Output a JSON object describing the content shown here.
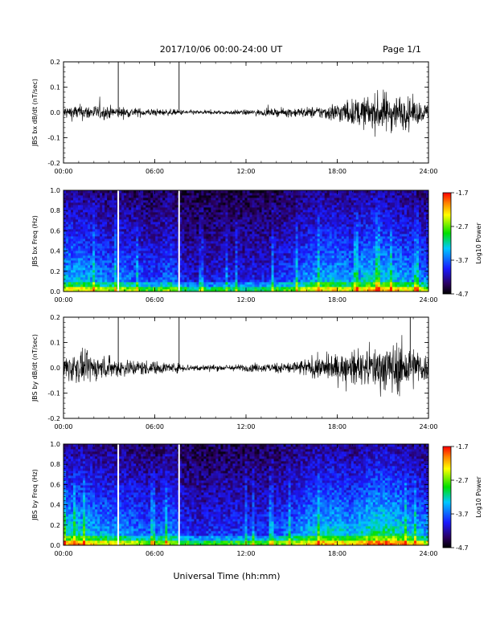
{
  "header": {
    "title": "2017/10/06  00:00-24:00 UT",
    "page": "Page 1/1"
  },
  "footer": {
    "xlabel": "Universal Time (hh:mm)"
  },
  "colorbar": {
    "ticks": [
      "-1.7",
      "-2.7",
      "-3.7",
      "-4.7"
    ],
    "label": "Log10 Power",
    "range": [
      -4.7,
      -1.7
    ]
  },
  "chart_data": [
    {
      "type": "line",
      "ylabel": "JBS bx dB/dt (nT/sec)",
      "xlim": [
        0,
        24
      ],
      "ylim": [
        -0.2,
        0.2
      ],
      "xticks": [
        "00:00",
        "06:00",
        "12:00",
        "18:00",
        "24:00"
      ],
      "yticks": [
        "0.2",
        "0.1",
        "0.0",
        "-0.1",
        "-0.2"
      ],
      "spikes_hours": [
        3.6,
        7.6
      ],
      "envelope": {
        "x": [
          0,
          1,
          2,
          3,
          4,
          5,
          6,
          7,
          8,
          9,
          10,
          11,
          12,
          13,
          14,
          15,
          16,
          17,
          18,
          19,
          20,
          21,
          22,
          23,
          24
        ],
        "amplitude": [
          0.025,
          0.03,
          0.028,
          0.025,
          0.02,
          0.016,
          0.014,
          0.012,
          0.01,
          0.008,
          0.008,
          0.009,
          0.01,
          0.012,
          0.014,
          0.018,
          0.02,
          0.025,
          0.04,
          0.05,
          0.06,
          0.08,
          0.07,
          0.05,
          0.03
        ]
      }
    },
    {
      "type": "heatmap",
      "ylabel": "JBS bx Freq (Hz)",
      "xlim": [
        0,
        24
      ],
      "ylim": [
        0,
        1
      ],
      "xticks": [
        "00:00",
        "06:00",
        "12:00",
        "18:00",
        "24:00"
      ],
      "yticks": [
        "1.0",
        "0.8",
        "0.6",
        "0.4",
        "0.2",
        "0.0"
      ],
      "gaps_hours": [
        3.6,
        7.6
      ],
      "activity": {
        "x": [
          0,
          1,
          2,
          3,
          4,
          5,
          6,
          7,
          8,
          9,
          10,
          11,
          12,
          13,
          14,
          15,
          16,
          17,
          18,
          19,
          20,
          21,
          22,
          23,
          24
        ],
        "level": [
          0.55,
          0.55,
          0.5,
          0.45,
          0.45,
          0.4,
          0.35,
          0.45,
          0.3,
          0.25,
          0.3,
          0.3,
          0.3,
          0.3,
          0.35,
          0.4,
          0.5,
          0.55,
          0.55,
          0.5,
          0.6,
          0.6,
          0.55,
          0.5,
          0.45
        ]
      }
    },
    {
      "type": "line",
      "ylabel": "JBS by dB/dt (nT/sec)",
      "xlim": [
        0,
        24
      ],
      "ylim": [
        -0.2,
        0.2
      ],
      "xticks": [
        "00:00",
        "06:00",
        "12:00",
        "18:00",
        "24:00"
      ],
      "yticks": [
        "0.2",
        "0.1",
        "0.0",
        "-0.1",
        "-0.2"
      ],
      "spikes_hours": [
        3.6,
        7.6,
        22.8
      ],
      "envelope": {
        "x": [
          0,
          1,
          2,
          3,
          4,
          5,
          6,
          7,
          8,
          9,
          10,
          11,
          12,
          13,
          14,
          15,
          16,
          17,
          18,
          19,
          20,
          21,
          22,
          23,
          24
        ],
        "amplitude": [
          0.05,
          0.06,
          0.05,
          0.04,
          0.035,
          0.03,
          0.025,
          0.02,
          0.015,
          0.012,
          0.012,
          0.012,
          0.014,
          0.016,
          0.02,
          0.025,
          0.035,
          0.045,
          0.05,
          0.06,
          0.07,
          0.09,
          0.1,
          0.08,
          0.05
        ]
      }
    },
    {
      "type": "heatmap",
      "ylabel": "JBS by Freq (Hz)",
      "xlim": [
        0,
        24
      ],
      "ylim": [
        0,
        1
      ],
      "xticks": [
        "00:00",
        "06:00",
        "12:00",
        "18:00",
        "24:00"
      ],
      "yticks": [
        "1.0",
        "0.8",
        "0.6",
        "0.4",
        "0.2",
        "0.0"
      ],
      "gaps_hours": [
        3.6,
        7.6
      ],
      "activity": {
        "x": [
          0,
          1,
          2,
          3,
          4,
          5,
          6,
          7,
          8,
          9,
          10,
          11,
          12,
          13,
          14,
          15,
          16,
          17,
          18,
          19,
          20,
          21,
          22,
          23,
          24
        ],
        "level": [
          0.6,
          0.6,
          0.55,
          0.5,
          0.5,
          0.45,
          0.4,
          0.5,
          0.35,
          0.3,
          0.35,
          0.35,
          0.35,
          0.35,
          0.4,
          0.45,
          0.55,
          0.6,
          0.6,
          0.55,
          0.65,
          0.7,
          0.65,
          0.55,
          0.5
        ]
      }
    }
  ]
}
